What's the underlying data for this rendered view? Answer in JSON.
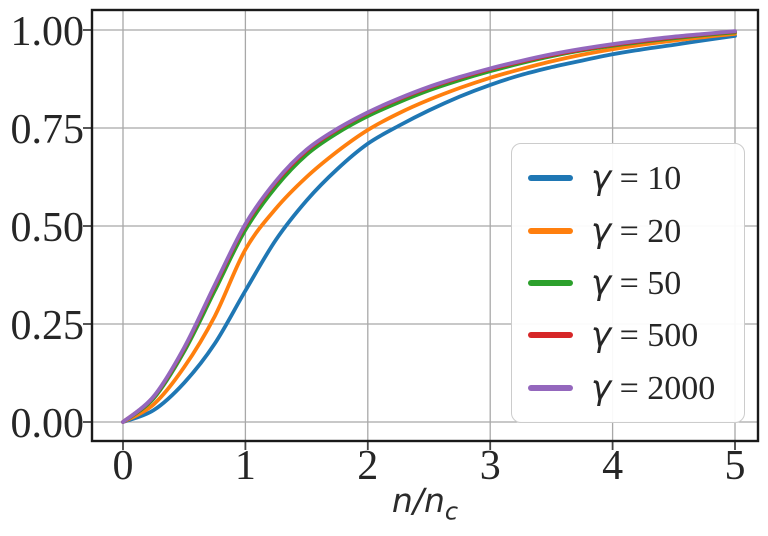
{
  "figure": {
    "background": "#ffffff",
    "text_color": "#262626",
    "grid_color": "#a8a8a8",
    "spine_color": "#1a1a1a",
    "legend_border_color": "#cccccc"
  },
  "xlabel": {
    "main": "n/n",
    "sub": "c"
  },
  "chart_data": {
    "type": "line",
    "title": "",
    "xlabel": "n/n_c",
    "ylabel": "",
    "xlim": [
      -0.25,
      5.18
    ],
    "ylim": [
      -0.05,
      1.05
    ],
    "grid": true,
    "legend_position": "center right",
    "xticks": [
      {
        "value": 0,
        "label": "0"
      },
      {
        "value": 1,
        "label": "1"
      },
      {
        "value": 2,
        "label": "2"
      },
      {
        "value": 3,
        "label": "3"
      },
      {
        "value": 4,
        "label": "4"
      },
      {
        "value": 5,
        "label": "5"
      }
    ],
    "yticks": [
      {
        "value": 0.0,
        "label": "0.00"
      },
      {
        "value": 0.25,
        "label": "0.25"
      },
      {
        "value": 0.5,
        "label": "0.50"
      },
      {
        "value": 0.75,
        "label": "0.75"
      },
      {
        "value": 1.0,
        "label": "1.00"
      }
    ],
    "x": [
      0,
      0.25,
      0.5,
      0.75,
      1,
      1.25,
      1.5,
      1.75,
      2,
      2.25,
      2.5,
      2.75,
      3,
      3.25,
      3.5,
      3.75,
      4,
      4.25,
      4.5,
      4.75,
      5
    ],
    "series": [
      {
        "key": "gamma-10",
        "symbol": "γ",
        "suffix": " = 10",
        "label": "γ = 10",
        "color": "#1f77b4",
        "values": [
          0,
          0.03,
          0.1,
          0.2,
          0.335,
          0.465,
          0.565,
          0.645,
          0.71,
          0.755,
          0.795,
          0.83,
          0.86,
          0.885,
          0.905,
          0.922,
          0.938,
          0.951,
          0.962,
          0.974,
          0.985
        ]
      },
      {
        "key": "gamma-20",
        "symbol": "γ",
        "suffix": " = 20",
        "label": "γ = 20",
        "color": "#ff7f0e",
        "values": [
          0,
          0.045,
          0.14,
          0.27,
          0.44,
          0.545,
          0.625,
          0.69,
          0.745,
          0.787,
          0.822,
          0.852,
          0.878,
          0.9,
          0.92,
          0.937,
          0.951,
          0.963,
          0.973,
          0.982,
          0.99
        ]
      },
      {
        "key": "gamma-50",
        "symbol": "γ",
        "suffix": " = 50",
        "label": "γ = 50",
        "color": "#2ca02c",
        "values": [
          0,
          0.06,
          0.18,
          0.335,
          0.49,
          0.6,
          0.682,
          0.737,
          0.78,
          0.815,
          0.846,
          0.872,
          0.895,
          0.915,
          0.933,
          0.948,
          0.96,
          0.97,
          0.979,
          0.987,
          0.994
        ]
      },
      {
        "key": "gamma-500",
        "symbol": "γ",
        "suffix": " = 500",
        "label": "γ = 500",
        "color": "#d62728",
        "values": [
          0,
          0.064,
          0.188,
          0.347,
          0.502,
          0.612,
          0.692,
          0.746,
          0.788,
          0.823,
          0.853,
          0.878,
          0.9,
          0.919,
          0.936,
          0.95,
          0.962,
          0.972,
          0.981,
          0.989,
          0.996
        ]
      },
      {
        "key": "gamma-2000",
        "symbol": "γ",
        "suffix": " = 2000",
        "label": "γ = 2000",
        "color": "#9467bd",
        "values": [
          0,
          0.065,
          0.19,
          0.35,
          0.505,
          0.615,
          0.695,
          0.748,
          0.79,
          0.825,
          0.855,
          0.88,
          0.902,
          0.921,
          0.938,
          0.952,
          0.964,
          0.974,
          0.983,
          0.99,
          0.997
        ]
      }
    ]
  }
}
